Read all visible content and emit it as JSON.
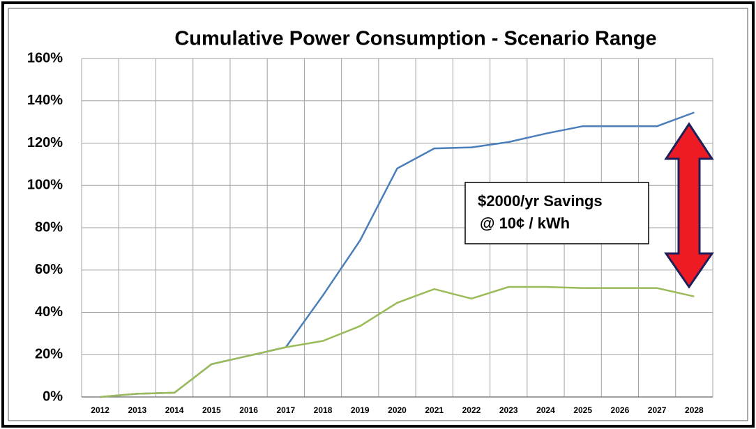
{
  "chart_data": {
    "type": "line",
    "title": "Cumulative Power Consumption - Scenario Range",
    "categories": [
      "2012",
      "2013",
      "2014",
      "2015",
      "2016",
      "2017",
      "2018",
      "2019",
      "2020",
      "2021",
      "2022",
      "2023",
      "2024",
      "2025",
      "2026",
      "2027",
      "2028"
    ],
    "series": [
      {
        "color": "#4a7ebb",
        "values": [
          0,
          1.5,
          2,
          15.5,
          19.5,
          23.5,
          48,
          74,
          108,
          117.5,
          118,
          120.5,
          124.5,
          128,
          128,
          128,
          134.5
        ]
      },
      {
        "color": "#9bbb59",
        "values": [
          0,
          1.5,
          2,
          15.5,
          19.5,
          23.5,
          26.5,
          33.5,
          44.5,
          51,
          46.5,
          52,
          52,
          51.5,
          51.5,
          51.5,
          47.5
        ]
      }
    ],
    "ylim": [
      0,
      160
    ],
    "yticks": [
      {
        "value": 0,
        "label": "0%"
      },
      {
        "value": 20,
        "label": "20%"
      },
      {
        "value": 40,
        "label": "40%"
      },
      {
        "value": 60,
        "label": "60%"
      },
      {
        "value": 80,
        "label": "80%"
      },
      {
        "value": 100,
        "label": "100%"
      },
      {
        "value": 120,
        "label": "120%"
      },
      {
        "value": 140,
        "label": "140%"
      },
      {
        "value": 160,
        "label": "160%"
      }
    ],
    "grid": true,
    "annotations": [
      "$2000/yr Savings",
      "@ 10¢ / kWh"
    ]
  }
}
